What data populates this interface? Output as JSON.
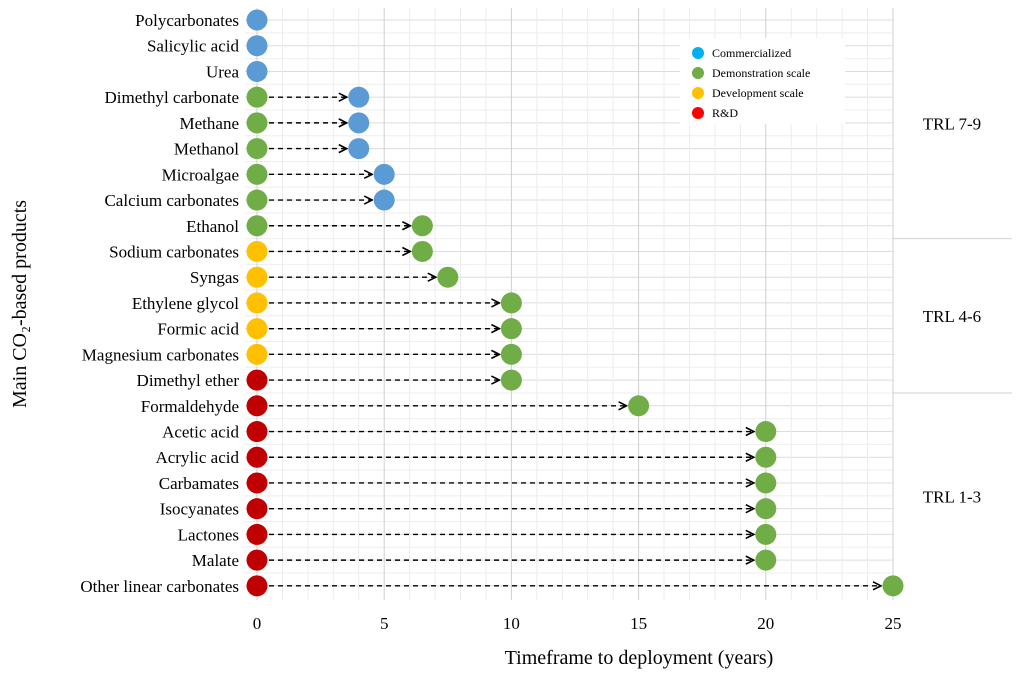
{
  "chart_data": {
    "type": "scatter",
    "xlabel": "Timeframe to deployment (years)",
    "ylabel": "Main CO₂-based products",
    "xlim": [
      0,
      25
    ],
    "xticks": [
      0,
      5,
      10,
      15,
      20,
      25
    ],
    "grid": true,
    "legend_position": "top-right",
    "colors": {
      "Commercialized": "#5b9bd5",
      "Demonstration scale": "#70ad47",
      "Development scale": "#ffc000",
      "R&D": "#c00000",
      "legend_commercialized": "#00b0f0",
      "legend_rd": "#ff0000"
    },
    "legend": [
      {
        "label": "Commercialized",
        "color_key": "legend_commercialized"
      },
      {
        "label": "Demonstration scale",
        "color_key": "Demonstration scale"
      },
      {
        "label": "Development scale",
        "color_key": "Development scale"
      },
      {
        "label": "R&D",
        "color_key": "legend_rd"
      }
    ],
    "products": [
      {
        "name": "Polycarbonates",
        "current": "Commercialized",
        "target_year": 0,
        "target": "Commercialized"
      },
      {
        "name": "Salicylic acid",
        "current": "Commercialized",
        "target_year": 0,
        "target": "Commercialized"
      },
      {
        "name": "Urea",
        "current": "Commercialized",
        "target_year": 0,
        "target": "Commercialized"
      },
      {
        "name": "Dimethyl carbonate",
        "current": "Demonstration scale",
        "target_year": 4,
        "target": "Commercialized"
      },
      {
        "name": "Methane",
        "current": "Demonstration scale",
        "target_year": 4,
        "target": "Commercialized"
      },
      {
        "name": "Methanol",
        "current": "Demonstration scale",
        "target_year": 4,
        "target": "Commercialized"
      },
      {
        "name": "Microalgae",
        "current": "Demonstration scale",
        "target_year": 5,
        "target": "Commercialized"
      },
      {
        "name": "Calcium carbonates",
        "current": "Demonstration scale",
        "target_year": 5,
        "target": "Commercialized"
      },
      {
        "name": "Ethanol",
        "current": "Demonstration scale",
        "target_year": 6.5,
        "target": "Demonstration scale"
      },
      {
        "name": "Sodium carbonates",
        "current": "Development scale",
        "target_year": 6.5,
        "target": "Demonstration scale"
      },
      {
        "name": "Syngas",
        "current": "Development scale",
        "target_year": 7.5,
        "target": "Demonstration scale"
      },
      {
        "name": "Ethylene glycol",
        "current": "Development scale",
        "target_year": 10,
        "target": "Demonstration scale"
      },
      {
        "name": "Formic acid",
        "current": "Development scale",
        "target_year": 10,
        "target": "Demonstration scale"
      },
      {
        "name": "Magnesium carbonates",
        "current": "Development scale",
        "target_year": 10,
        "target": "Demonstration scale"
      },
      {
        "name": "Dimethyl ether",
        "current": "R&D",
        "target_year": 10,
        "target": "Demonstration scale"
      },
      {
        "name": "Formaldehyde",
        "current": "R&D",
        "target_year": 15,
        "target": "Demonstration scale"
      },
      {
        "name": "Acetic acid",
        "current": "R&D",
        "target_year": 20,
        "target": "Demonstration scale"
      },
      {
        "name": "Acrylic acid",
        "current": "R&D",
        "target_year": 20,
        "target": "Demonstration scale"
      },
      {
        "name": "Carbamates",
        "current": "R&D",
        "target_year": 20,
        "target": "Demonstration scale"
      },
      {
        "name": "Isocyanates",
        "current": "R&D",
        "target_year": 20,
        "target": "Demonstration scale"
      },
      {
        "name": "Lactones",
        "current": "R&D",
        "target_year": 20,
        "target": "Demonstration scale"
      },
      {
        "name": "Malate",
        "current": "R&D",
        "target_year": 20,
        "target": "Demonstration scale"
      },
      {
        "name": "Other linear carbonates",
        "current": "R&D",
        "target_year": 25,
        "target": "Demonstration scale"
      }
    ],
    "trl_bands": [
      {
        "label": "TRL 7-9",
        "from": "Polycarbonates",
        "to": "Ethanol"
      },
      {
        "label": "TRL 4-6",
        "from": "Sodium carbonates",
        "to": "Dimethyl ether"
      },
      {
        "label": "TRL 1-3",
        "from": "Formaldehyde",
        "to": "Other linear carbonates"
      }
    ]
  }
}
